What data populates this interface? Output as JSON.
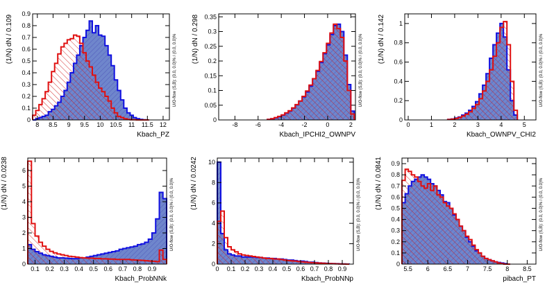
{
  "colors": {
    "signal_fill": "#6f86cc",
    "signal_line": "#1010e0",
    "background_line": "#e01010",
    "frame": "#000000"
  },
  "chart_data": [
    {
      "type": "histogram",
      "xlabel": "Kbach_PZ",
      "ylabel": "(1/N) dN / 0.109",
      "side_label": "U/O-flow (S,B): (0.0, 0.0)% / (0.0, 0.0)%",
      "xlim": [
        7.85,
        12.2
      ],
      "ylim": [
        0,
        0.9
      ],
      "xticks": [
        8,
        8.5,
        9,
        9.5,
        10,
        10.5,
        11,
        11.5,
        12
      ],
      "yticks": [
        0,
        0.1,
        0.2,
        0.3,
        0.4,
        0.5,
        0.6,
        0.7,
        0.8,
        0.9
      ],
      "bin_edges": [
        7.85,
        7.95,
        8.05,
        8.15,
        8.25,
        8.35,
        8.45,
        8.55,
        8.65,
        8.75,
        8.85,
        8.95,
        9.05,
        9.15,
        9.25,
        9.35,
        9.45,
        9.55,
        9.65,
        9.75,
        9.85,
        9.95,
        10.05,
        10.15,
        10.25,
        10.35,
        10.45,
        10.55,
        10.65,
        10.75,
        10.85,
        10.95,
        11.05,
        11.15,
        11.25,
        11.35,
        11.45,
        11.55
      ],
      "series": [
        {
          "role": "signal",
          "values": [
            0.0,
            0.01,
            0.02,
            0.03,
            0.04,
            0.07,
            0.09,
            0.12,
            0.15,
            0.2,
            0.25,
            0.32,
            0.4,
            0.48,
            0.55,
            0.63,
            0.7,
            0.76,
            0.84,
            0.74,
            0.8,
            0.72,
            0.71,
            0.63,
            0.55,
            0.46,
            0.34,
            0.25,
            0.17,
            0.1,
            0.06,
            0.04,
            0.02,
            0.01,
            0.005,
            0.002,
            0.0
          ]
        },
        {
          "role": "background",
          "values": [
            0.04,
            0.08,
            0.13,
            0.18,
            0.24,
            0.32,
            0.41,
            0.48,
            0.56,
            0.62,
            0.65,
            0.68,
            0.69,
            0.72,
            0.71,
            0.65,
            0.57,
            0.5,
            0.45,
            0.38,
            0.32,
            0.27,
            0.24,
            0.2,
            0.16,
            0.1,
            0.06,
            0.03,
            0.02,
            0.01,
            0.005,
            0.002,
            0.001,
            0.0,
            0.0,
            0.0,
            0.0
          ]
        }
      ]
    },
    {
      "type": "histogram",
      "xlabel": "Kbach_IPCHI2_OWNPV",
      "ylabel": "(1/N) dN / 0.298",
      "side_label": "U/O-flow (S,B): (0.0, 0.0)% / (0.0, 0.0)%",
      "xlim": [
        -9.4,
        2.4
      ],
      "ylim": [
        0,
        0.36
      ],
      "xticks": [
        -8,
        -6,
        -4,
        -2,
        0,
        2
      ],
      "yticks": [
        0,
        0.05,
        0.1,
        0.15,
        0.2,
        0.25,
        0.3,
        0.35
      ],
      "bin_edges": [
        -5.2,
        -4.9,
        -4.6,
        -4.3,
        -4.0,
        -3.7,
        -3.4,
        -3.1,
        -2.8,
        -2.5,
        -2.2,
        -1.9,
        -1.6,
        -1.3,
        -1.0,
        -0.7,
        -0.4,
        -0.1,
        0.2,
        0.5,
        0.8,
        1.1,
        1.4,
        1.7,
        2.0,
        2.3
      ],
      "series": [
        {
          "role": "signal",
          "values": [
            0.002,
            0.004,
            0.007,
            0.011,
            0.016,
            0.023,
            0.03,
            0.04,
            0.051,
            0.064,
            0.078,
            0.095,
            0.115,
            0.14,
            0.165,
            0.195,
            0.225,
            0.255,
            0.29,
            0.32,
            0.325,
            0.3,
            0.22,
            0.12,
            0.03
          ]
        },
        {
          "role": "background",
          "values": [
            0.002,
            0.004,
            0.008,
            0.012,
            0.017,
            0.024,
            0.031,
            0.041,
            0.052,
            0.064,
            0.08,
            0.098,
            0.118,
            0.14,
            0.168,
            0.198,
            0.228,
            0.26,
            0.295,
            0.325,
            0.31,
            0.28,
            0.2,
            0.1,
            0.02
          ]
        }
      ]
    },
    {
      "type": "histogram",
      "xlabel": "Kbach_OWNPV_CHI2",
      "ylabel": "(1/N) dN / 0.142",
      "side_label": "U/O-flow (S,B): (0.0, 0.0)% / (0.0, 0.0)%",
      "xlim": [
        -0.15,
        5.5
      ],
      "ylim": [
        0,
        1.1
      ],
      "xticks": [
        0,
        1,
        2,
        3,
        4,
        5
      ],
      "yticks": [
        0,
        0.2,
        0.4,
        0.6,
        0.8,
        1
      ],
      "bin_edges": [
        1.7,
        1.85,
        2.0,
        2.15,
        2.3,
        2.45,
        2.6,
        2.75,
        2.9,
        3.05,
        3.2,
        3.35,
        3.5,
        3.65,
        3.8,
        3.95,
        4.1,
        4.25,
        4.4,
        4.55,
        4.7
      ],
      "series": [
        {
          "role": "signal",
          "values": [
            0.005,
            0.01,
            0.02,
            0.03,
            0.05,
            0.07,
            0.1,
            0.14,
            0.19,
            0.27,
            0.36,
            0.48,
            0.64,
            0.78,
            0.9,
            1.0,
            0.86,
            0.52,
            0.2,
            0.05
          ]
        },
        {
          "role": "background",
          "values": [
            0.004,
            0.008,
            0.015,
            0.025,
            0.04,
            0.06,
            0.085,
            0.12,
            0.16,
            0.22,
            0.3,
            0.4,
            0.52,
            0.66,
            0.8,
            0.96,
            1.02,
            0.78,
            0.4,
            0.1
          ]
        }
      ]
    },
    {
      "type": "histogram",
      "xlabel": "Kbach_ProbNNk",
      "ylabel": "(1/N) dN / 0.0238",
      "side_label": "U/O-flow (S,B): (0.0, 0.0)% / (0.0, 0.0)%",
      "xlim": [
        0.05,
        1.0
      ],
      "ylim": [
        0,
        6.8
      ],
      "xticks": [
        0.1,
        0.2,
        0.3,
        0.4,
        0.5,
        0.6,
        0.7,
        0.8,
        0.9
      ],
      "yticks": [
        0,
        1,
        2,
        3,
        4,
        5,
        6
      ],
      "bin_edges": [
        0.05,
        0.075,
        0.1,
        0.125,
        0.15,
        0.175,
        0.2,
        0.225,
        0.25,
        0.275,
        0.3,
        0.325,
        0.35,
        0.375,
        0.4,
        0.425,
        0.45,
        0.475,
        0.5,
        0.525,
        0.55,
        0.575,
        0.6,
        0.625,
        0.65,
        0.675,
        0.7,
        0.725,
        0.75,
        0.775,
        0.8,
        0.825,
        0.85,
        0.875,
        0.9,
        0.925,
        0.95,
        0.975,
        1.0
      ],
      "series": [
        {
          "role": "signal",
          "values": [
            1.25,
            0.95,
            0.8,
            0.7,
            0.6,
            0.55,
            0.5,
            0.45,
            0.4,
            0.4,
            0.38,
            0.36,
            0.35,
            0.35,
            0.4,
            0.4,
            0.45,
            0.5,
            0.55,
            0.6,
            0.65,
            0.7,
            0.75,
            0.8,
            0.85,
            0.95,
            1.0,
            1.05,
            1.1,
            1.15,
            1.25,
            1.3,
            1.4,
            1.6,
            2.0,
            2.9,
            4.6,
            4.2
          ]
        },
        {
          "role": "background",
          "values": [
            6.6,
            2.6,
            1.8,
            1.4,
            1.15,
            0.95,
            0.82,
            0.72,
            0.65,
            0.6,
            0.55,
            0.5,
            0.48,
            0.45,
            0.42,
            0.4,
            0.38,
            0.38,
            0.36,
            0.36,
            0.34,
            0.34,
            0.32,
            0.32,
            0.3,
            0.3,
            0.3,
            0.3,
            0.28,
            0.26,
            0.25,
            0.24,
            0.22,
            0.2,
            0.18,
            0.16,
            0.9,
            0.3
          ]
        }
      ]
    },
    {
      "type": "histogram",
      "xlabel": "Kbach_ProbNNp",
      "ylabel": "(1/N) dN / 0.0242",
      "side_label": "U/O-flow (S,B): (0.0, 0.0)% / (0.0, 0.0)%",
      "xlim": [
        0,
        0.98
      ],
      "ylim": [
        0,
        10.4
      ],
      "xticks": [
        0,
        0.1,
        0.2,
        0.3,
        0.4,
        0.5,
        0.6,
        0.7,
        0.8,
        0.9
      ],
      "yticks": [
        0,
        2,
        4,
        6,
        8,
        10
      ],
      "bin_edges": [
        0.0,
        0.025,
        0.05,
        0.075,
        0.1,
        0.125,
        0.15,
        0.175,
        0.2,
        0.225,
        0.25,
        0.275,
        0.3,
        0.325,
        0.35,
        0.375,
        0.4,
        0.425,
        0.45,
        0.475,
        0.5,
        0.525,
        0.55,
        0.575,
        0.6,
        0.625,
        0.65,
        0.675,
        0.7,
        0.725,
        0.75,
        0.775,
        0.8,
        0.825,
        0.85,
        0.875,
        0.9,
        0.925,
        0.95
      ],
      "series": [
        {
          "role": "signal",
          "values": [
            10.0,
            3.0,
            1.4,
            1.0,
            0.9,
            0.8,
            0.8,
            0.7,
            0.7,
            0.7,
            0.7,
            0.65,
            0.65,
            0.6,
            0.6,
            0.55,
            0.55,
            0.5,
            0.5,
            0.45,
            0.4,
            0.4,
            0.35,
            0.3,
            0.3,
            0.25,
            0.2,
            0.2,
            0.15,
            0.12,
            0.1,
            0.08,
            0.06,
            0.05,
            0.04,
            0.03,
            0.02,
            0.01
          ]
        },
        {
          "role": "background",
          "values": [
            4.2,
            5.2,
            2.6,
            1.7,
            1.4,
            1.2,
            1.0,
            0.9,
            0.85,
            0.8,
            0.75,
            0.7,
            0.65,
            0.6,
            0.55,
            0.55,
            0.5,
            0.5,
            0.45,
            0.4,
            0.35,
            0.32,
            0.3,
            0.25,
            0.22,
            0.2,
            0.16,
            0.14,
            0.12,
            0.1,
            0.08,
            0.06,
            0.05,
            0.04,
            0.03,
            0.02,
            0.01,
            0.0
          ]
        }
      ]
    },
    {
      "type": "histogram",
      "xlabel": "pibach_PT",
      "ylabel": "(1/N) dN / 0.0841",
      "side_label": "U/O-flow (S,B): (0.0, 0.0)% / (0.0, 0.0)%",
      "xlim": [
        5.35,
        8.72
      ],
      "ylim": [
        0,
        0.95
      ],
      "xticks": [
        5.5,
        6,
        6.5,
        7,
        7.5,
        8,
        8.5
      ],
      "yticks": [
        0,
        0.1,
        0.2,
        0.3,
        0.4,
        0.5,
        0.6,
        0.7,
        0.8,
        0.9
      ],
      "bin_edges": [
        5.35,
        5.43,
        5.51,
        5.59,
        5.67,
        5.75,
        5.83,
        5.91,
        5.99,
        6.07,
        6.15,
        6.23,
        6.31,
        6.39,
        6.47,
        6.55,
        6.63,
        6.71,
        6.79,
        6.87,
        6.95,
        7.03,
        7.11,
        7.19,
        7.27,
        7.35,
        7.43,
        7.51,
        7.59,
        7.67,
        7.75,
        7.83,
        7.91,
        7.99,
        8.07
      ],
      "series": [
        {
          "role": "signal",
          "values": [
            0.55,
            0.63,
            0.7,
            0.74,
            0.76,
            0.78,
            0.8,
            0.78,
            0.76,
            0.72,
            0.7,
            0.66,
            0.62,
            0.56,
            0.55,
            0.5,
            0.44,
            0.4,
            0.34,
            0.3,
            0.24,
            0.2,
            0.16,
            0.12,
            0.1,
            0.07,
            0.05,
            0.04,
            0.03,
            0.02,
            0.015,
            0.01,
            0.005,
            0.0
          ]
        },
        {
          "role": "background",
          "values": [
            0.75,
            0.85,
            0.83,
            0.8,
            0.78,
            0.74,
            0.7,
            0.68,
            0.72,
            0.66,
            0.7,
            0.62,
            0.6,
            0.55,
            0.52,
            0.5,
            0.45,
            0.4,
            0.34,
            0.3,
            0.25,
            0.22,
            0.17,
            0.13,
            0.1,
            0.07,
            0.05,
            0.04,
            0.03,
            0.02,
            0.01,
            0.005,
            0.0,
            0.0
          ]
        }
      ]
    }
  ]
}
